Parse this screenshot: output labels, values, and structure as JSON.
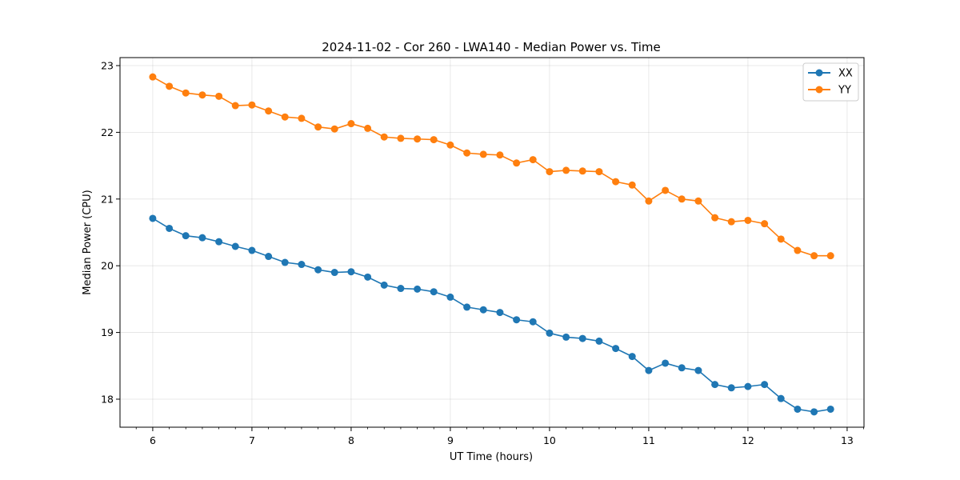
{
  "chart_data": {
    "type": "line",
    "title": "2024-11-02 - Cor 260 - LWA140 - Median Power vs. Time",
    "xlabel": "UT Time (hours)",
    "ylabel": "Median Power (CPU)",
    "xlim": [
      5.67,
      13.17
    ],
    "ylim": [
      17.58,
      23.12
    ],
    "xticks": [
      6,
      7,
      8,
      9,
      10,
      11,
      12,
      13
    ],
    "yticks": [
      18,
      19,
      20,
      21,
      22,
      23
    ],
    "grid": true,
    "legend_position": "top-right",
    "x": [
      6.0,
      6.167,
      6.333,
      6.5,
      6.667,
      6.833,
      7.0,
      7.167,
      7.333,
      7.5,
      7.667,
      7.833,
      8.0,
      8.167,
      8.333,
      8.5,
      8.667,
      8.833,
      9.0,
      9.167,
      9.333,
      9.5,
      9.667,
      9.833,
      10.0,
      10.167,
      10.333,
      10.5,
      10.667,
      10.833,
      11.0,
      11.167,
      11.333,
      11.5,
      11.667,
      11.833,
      12.0,
      12.167,
      12.333,
      12.5,
      12.667,
      12.833
    ],
    "series": [
      {
        "name": "XX",
        "color": "#1f77b4",
        "values": [
          20.71,
          20.56,
          20.45,
          20.42,
          20.36,
          20.29,
          20.23,
          20.14,
          20.05,
          20.02,
          19.94,
          19.9,
          19.91,
          19.83,
          19.71,
          19.66,
          19.65,
          19.61,
          19.53,
          19.38,
          19.34,
          19.3,
          19.19,
          19.16,
          18.99,
          18.93,
          18.91,
          18.87,
          18.76,
          18.64,
          18.43,
          18.54,
          18.47,
          18.43,
          18.22,
          18.17,
          18.19,
          18.22,
          18.01,
          17.85,
          17.81,
          17.85
        ]
      },
      {
        "name": "YY",
        "color": "#ff7f0e",
        "values": [
          22.83,
          22.69,
          22.59,
          22.56,
          22.54,
          22.4,
          22.41,
          22.32,
          22.23,
          22.21,
          22.08,
          22.05,
          22.13,
          22.06,
          21.93,
          21.91,
          21.9,
          21.89,
          21.81,
          21.69,
          21.67,
          21.66,
          21.54,
          21.59,
          21.41,
          21.43,
          21.42,
          21.41,
          21.26,
          21.21,
          20.97,
          21.13,
          21.0,
          20.97,
          20.72,
          20.66,
          20.68,
          20.63,
          20.4,
          20.23,
          20.15,
          20.15
        ]
      }
    ]
  }
}
